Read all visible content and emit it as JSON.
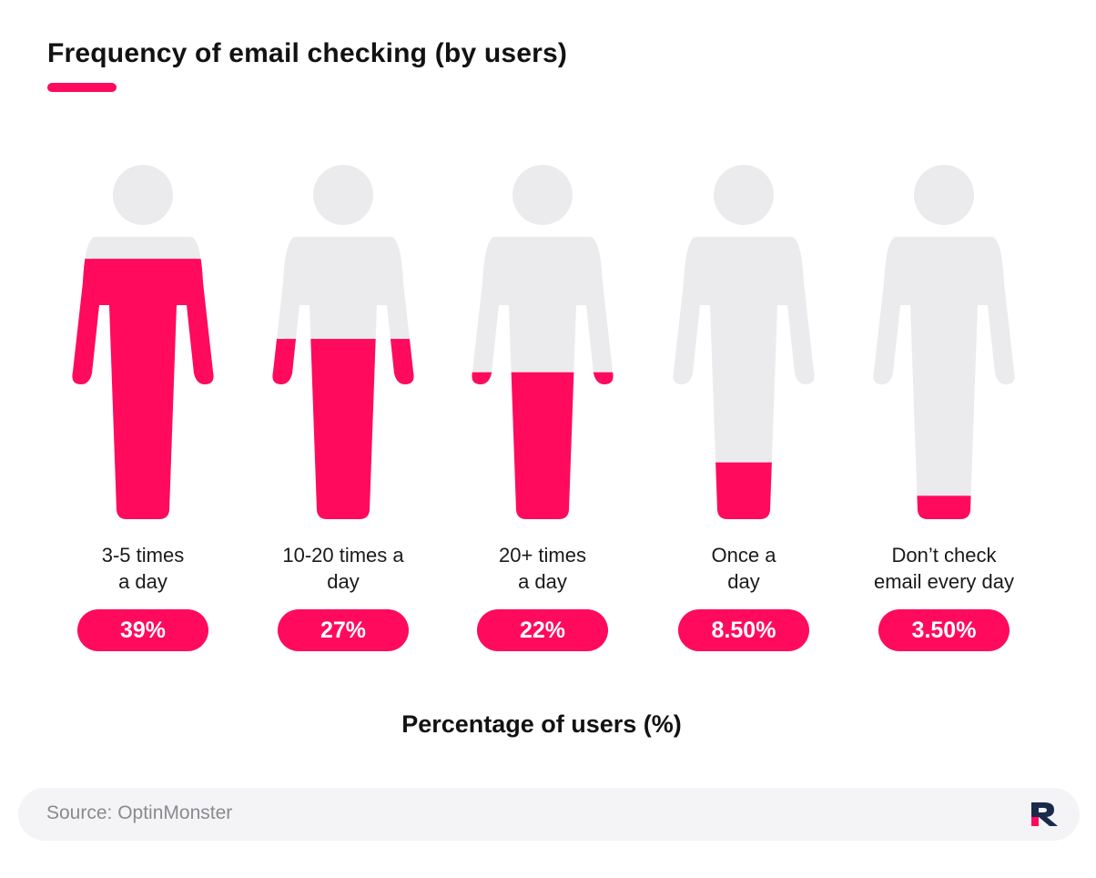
{
  "title": "Frequency of email checking (by users)",
  "x_axis_title": "Percentage of users (%)",
  "source": "Source: OptinMonster",
  "colors": {
    "accent": "#ff0a5c",
    "figure": "#ebebed",
    "text": "#141414",
    "source_bg": "#f4f4f7"
  },
  "icons": {
    "figure": "person-icon",
    "logo": "logo-icon"
  },
  "chart_data": {
    "type": "bar",
    "title": "Frequency of email checking (by users)",
    "xlabel": "Percentage of users (%)",
    "ylabel": "",
    "ylim": [
      0,
      100
    ],
    "categories": [
      "3-5 times\na day",
      "10-20 times a\nday",
      "20+ times\na day",
      "Once a\nday",
      "Don’t check\nemail every day"
    ],
    "values": [
      39,
      27,
      22,
      8.5,
      3.5
    ],
    "value_labels": [
      "39%",
      "27%",
      "22%",
      "8.50%",
      "3.50%"
    ]
  }
}
